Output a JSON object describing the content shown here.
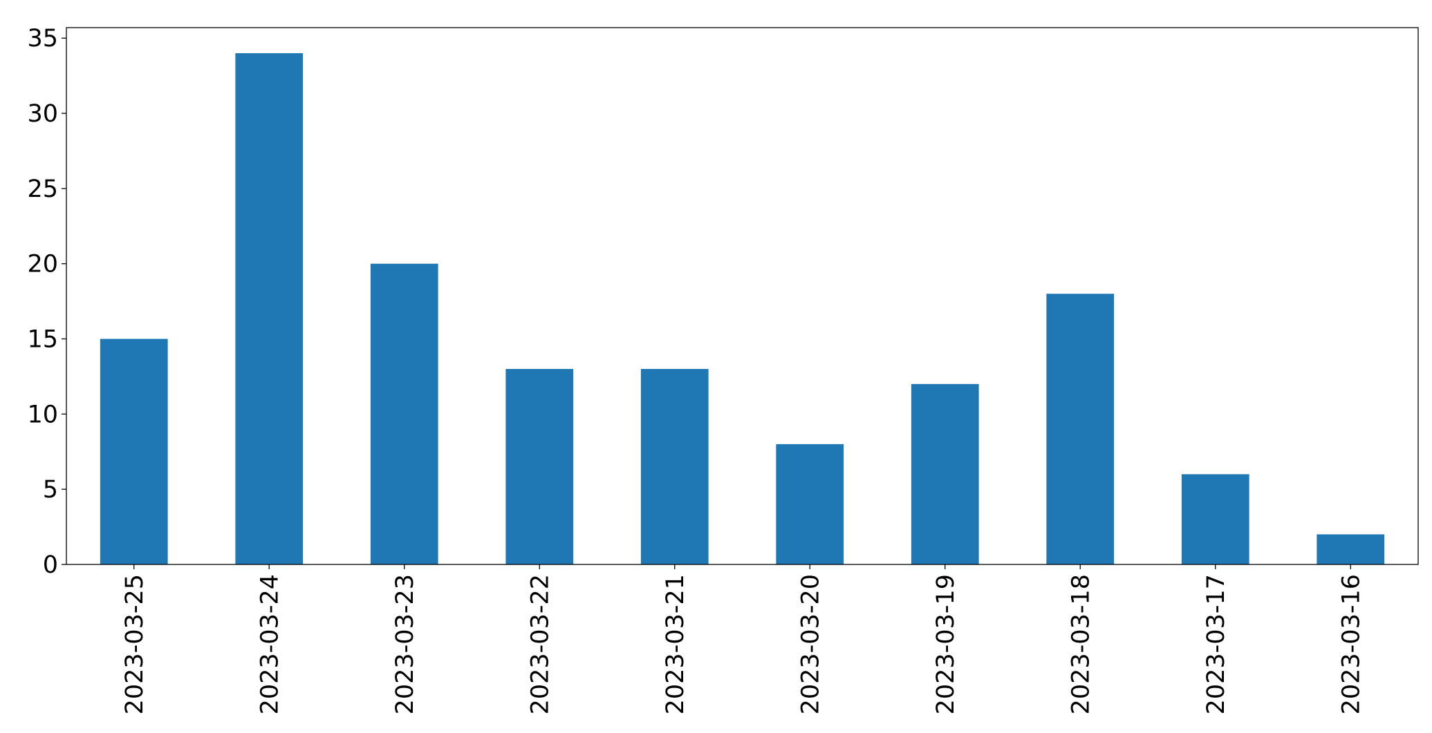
{
  "chart_data": {
    "type": "bar",
    "categories": [
      "2023-03-25",
      "2023-03-24",
      "2023-03-23",
      "2023-03-22",
      "2023-03-21",
      "2023-03-20",
      "2023-03-19",
      "2023-03-18",
      "2023-03-17",
      "2023-03-16"
    ],
    "values": [
      15,
      34,
      20,
      13,
      13,
      8,
      12,
      18,
      6,
      2
    ],
    "color": "#1f77b4",
    "ylim": [
      0,
      35.7
    ],
    "yticks": [
      0,
      5,
      10,
      15,
      20,
      25,
      30,
      35
    ],
    "grid": false
  }
}
